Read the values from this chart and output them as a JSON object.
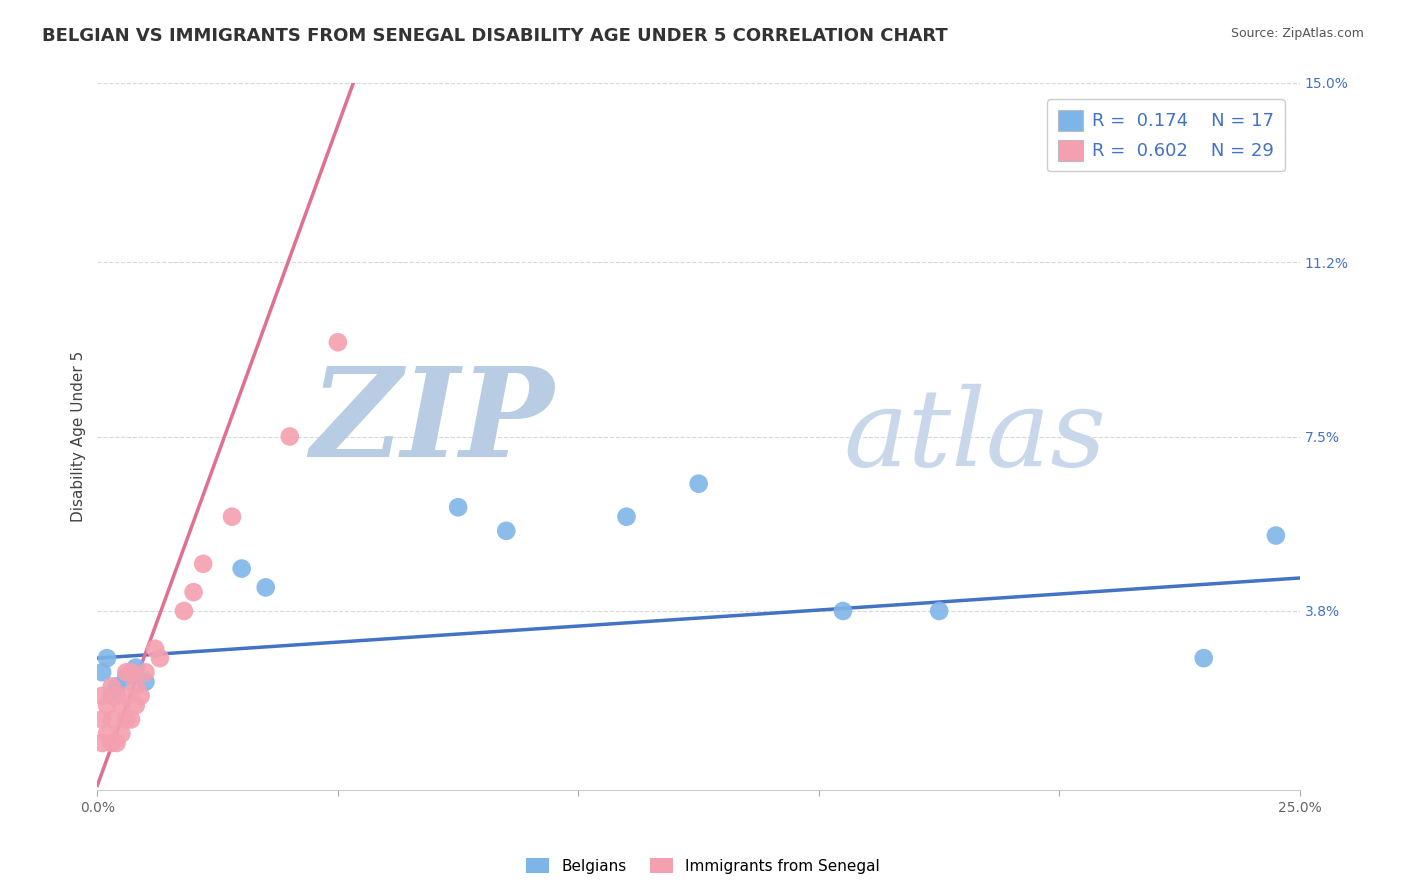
{
  "title": "BELGIAN VS IMMIGRANTS FROM SENEGAL DISABILITY AGE UNDER 5 CORRELATION CHART",
  "source": "Source: ZipAtlas.com",
  "ylabel": "Disability Age Under 5",
  "xlim": [
    0.0,
    0.25
  ],
  "ylim": [
    0.0,
    0.15
  ],
  "xtick_vals": [
    0.0,
    0.05,
    0.1,
    0.15,
    0.2,
    0.25
  ],
  "xtick_labels": [
    "0.0%",
    "",
    "",
    "",
    "",
    "25.0%"
  ],
  "ytick_right_labels": [
    "3.8%",
    "7.5%",
    "11.2%",
    "15.0%"
  ],
  "ytick_right_values": [
    0.038,
    0.075,
    0.112,
    0.15
  ],
  "belgian_color": "#7eb5e8",
  "senegal_color": "#f4a0b0",
  "belgian_line_color": "#4472c4",
  "senegal_line_color": "#e07090",
  "belgian_R": 0.174,
  "belgian_N": 17,
  "senegal_R": 0.602,
  "senegal_N": 29,
  "belgian_x": [
    0.001,
    0.002,
    0.003,
    0.004,
    0.006,
    0.008,
    0.01,
    0.03,
    0.035,
    0.075,
    0.085,
    0.11,
    0.125,
    0.155,
    0.175,
    0.23,
    0.245
  ],
  "belgian_y": [
    0.025,
    0.028,
    0.02,
    0.022,
    0.024,
    0.026,
    0.023,
    0.047,
    0.043,
    0.06,
    0.055,
    0.058,
    0.065,
    0.038,
    0.038,
    0.028,
    0.054
  ],
  "senegal_x": [
    0.001,
    0.001,
    0.001,
    0.002,
    0.002,
    0.003,
    0.003,
    0.003,
    0.004,
    0.004,
    0.005,
    0.005,
    0.006,
    0.006,
    0.006,
    0.007,
    0.007,
    0.008,
    0.008,
    0.009,
    0.01,
    0.012,
    0.013,
    0.018,
    0.02,
    0.022,
    0.028,
    0.04,
    0.05
  ],
  "senegal_y": [
    0.01,
    0.015,
    0.02,
    0.012,
    0.018,
    0.01,
    0.015,
    0.022,
    0.01,
    0.02,
    0.012,
    0.018,
    0.015,
    0.02,
    0.025,
    0.015,
    0.025,
    0.018,
    0.022,
    0.02,
    0.025,
    0.03,
    0.028,
    0.038,
    0.042,
    0.048,
    0.058,
    0.075,
    0.095
  ],
  "background_color": "#ffffff",
  "grid_color": "#c8c8c8",
  "watermark_zip_color": "#b8cce4",
  "watermark_atlas_color": "#c8d8ea",
  "title_fontsize": 13,
  "axis_label_fontsize": 11,
  "tick_fontsize": 10,
  "legend_fontsize": 13,
  "senegal_line_slope": 2.8,
  "senegal_line_intercept": 0.001,
  "belgian_line_slope": 0.068,
  "belgian_line_intercept": 0.028
}
